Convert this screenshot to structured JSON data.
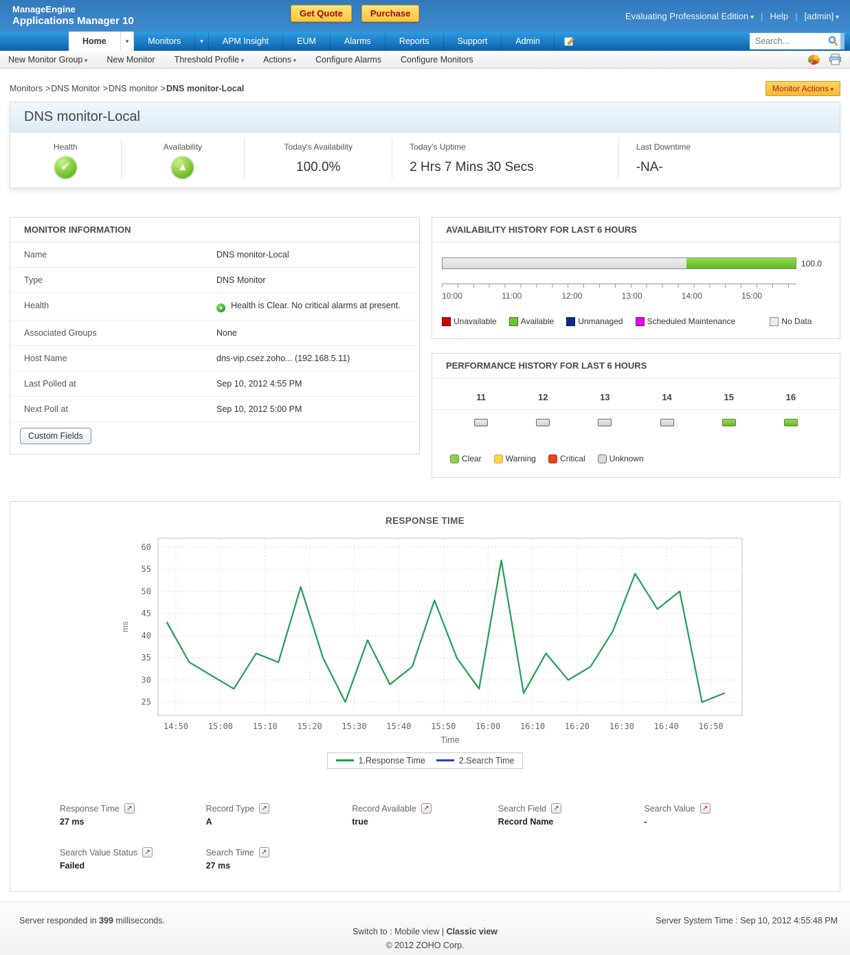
{
  "header": {
    "brand_line1": "ManageEngine",
    "brand_line2": "Applications Manager 10",
    "get_quote_label": "Get Quote",
    "purchase_label": "Purchase",
    "edition_label": "Evaluating Professional Edition",
    "help_label": "Help",
    "admin_label": "[admin]",
    "divider": "|"
  },
  "nav": {
    "tabs": [
      "Home",
      "Monitors",
      "APM Insight",
      "EUM",
      "Alarms",
      "Reports",
      "Support",
      "Admin"
    ],
    "active_tab": "Home",
    "search_placeholder": "Search..."
  },
  "subnav": {
    "items": [
      "New Monitor Group",
      "New Monitor",
      "Threshold Profile",
      "Actions",
      "Configure Alarms",
      "Configure Monitors"
    ]
  },
  "breadcrumb": {
    "items": [
      "Monitors",
      "DNS Monitor",
      "DNS monitor"
    ],
    "current": "DNS monitor-Local",
    "separator": ">"
  },
  "monitor_actions_label": "Monitor Actions",
  "summary": {
    "title": "DNS monitor-Local",
    "health_label": "Health",
    "availability_label": "Availability",
    "todays_availability_label": "Today's Availability",
    "todays_availability_value": "100.0%",
    "todays_uptime_label": "Today's Uptime",
    "todays_uptime_value": "2 Hrs 7 Mins 30 Secs",
    "last_downtime_label": "Last Downtime",
    "last_downtime_value": "-NA-"
  },
  "monitor_info": {
    "title": "MONITOR INFORMATION",
    "rows": [
      {
        "label": "Name",
        "value": "DNS monitor-Local"
      },
      {
        "label": "Type",
        "value": "DNS Monitor"
      },
      {
        "label": "Health",
        "value": "Health is Clear. No critical alarms at present."
      },
      {
        "label": "Associated Groups",
        "value": "None"
      },
      {
        "label": "Host Name",
        "value": "dns-vip.csez.zoho... (192.168.5.11)"
      },
      {
        "label": "Last Polled at",
        "value": "Sep 10, 2012 4:55 PM"
      },
      {
        "label": "Next Poll at",
        "value": "Sep 10, 2012 5:00 PM"
      }
    ],
    "custom_fields_label": "Custom Fields"
  },
  "availability": {
    "title": "AVAILABILITY HISTORY FOR LAST 6 HOURS",
    "bar": {
      "no_data_pct": 69,
      "available_pct": 31,
      "value_label": "100.0"
    },
    "axis_labels": [
      "10:00",
      "11:00",
      "12:00",
      "13:00",
      "14:00",
      "15:00"
    ],
    "axis_positions_pct": [
      0,
      16.9,
      33.8,
      50.7,
      67.6,
      84.5
    ],
    "legend": [
      "Unavailable",
      "Available",
      "Unmanaged",
      "Scheduled Maintenance",
      "No Data"
    ],
    "legend_colors": {
      "unavailable": "#cc0000",
      "available": "#72c32b",
      "unmanaged": "#0b2d8e",
      "scheduled_maintenance": "#e800e8",
      "no_data": "#ececec"
    }
  },
  "performance": {
    "title": "PERFORMANCE HISTORY FOR LAST 6 HOURS",
    "columns": [
      {
        "hour": "11",
        "status": "unknown"
      },
      {
        "hour": "12",
        "status": "unknown"
      },
      {
        "hour": "13",
        "status": "unknown"
      },
      {
        "hour": "14",
        "status": "unknown"
      },
      {
        "hour": "15",
        "status": "clear"
      },
      {
        "hour": "16",
        "status": "clear"
      }
    ],
    "legend": [
      "Clear",
      "Warning",
      "Critical",
      "Unknown"
    ],
    "legend_colors": {
      "clear": "#8ed051",
      "warning": "#ffd34d",
      "critical": "#e8431f",
      "unknown": "#d9d9d9"
    }
  },
  "chart_data": {
    "type": "line",
    "title": "RESPONSE TIME",
    "xlabel": "Time",
    "ylabel": "ms",
    "ylim": [
      22,
      62
    ],
    "yticks": [
      25,
      30,
      35,
      40,
      45,
      50,
      55,
      60
    ],
    "x_range": [
      "14:46",
      "16:57"
    ],
    "xticks": [
      "14:50",
      "15:00",
      "15:10",
      "15:20",
      "15:30",
      "15:40",
      "15:50",
      "16:00",
      "16:10",
      "16:20",
      "16:30",
      "16:40",
      "16:50"
    ],
    "grid": true,
    "legend_position": "bottom",
    "series": [
      {
        "name": "1.Response Time",
        "color": "#1fa050",
        "x": [
          "14:48",
          "14:53",
          "14:58",
          "15:03",
          "15:08",
          "15:13",
          "15:18",
          "15:23",
          "15:28",
          "15:33",
          "15:38",
          "15:43",
          "15:48",
          "15:53",
          "15:58",
          "16:03",
          "16:08",
          "16:13",
          "16:18",
          "16:23",
          "16:28",
          "16:33",
          "16:38",
          "16:43",
          "16:48",
          "16:53"
        ],
        "values": [
          43,
          34,
          31,
          28,
          36,
          34,
          51,
          35,
          25,
          39,
          29,
          33,
          48,
          35,
          28,
          57,
          27,
          36,
          30,
          33,
          41,
          54,
          46,
          50,
          25,
          27
        ]
      },
      {
        "name": "2.Search Time",
        "color": "#2d3fc0",
        "x": [],
        "values": []
      }
    ]
  },
  "fields": [
    {
      "label": "Response Time",
      "value": "27 ms"
    },
    {
      "label": "Record Type",
      "value": "A"
    },
    {
      "label": "Record Available",
      "value": "true"
    },
    {
      "label": "Search Field",
      "value": "Record Name"
    },
    {
      "label": "Search Value",
      "value": "-"
    },
    {
      "label": "Search Value Status",
      "value": "Failed"
    },
    {
      "label": "Search Time",
      "value": "27 ms"
    }
  ],
  "footer": {
    "responded_prefix": "Server responded in",
    "responded_ms": "399",
    "responded_suffix": "milliseconds.",
    "switch_prefix": "Switch to :",
    "mobile_view": "Mobile view",
    "divider": "|",
    "classic_view": "Classic view",
    "copyright": "© 2012 ZOHO Corp.",
    "server_time": "Server System Time : Sep 10, 2012 4:55:48 PM"
  }
}
